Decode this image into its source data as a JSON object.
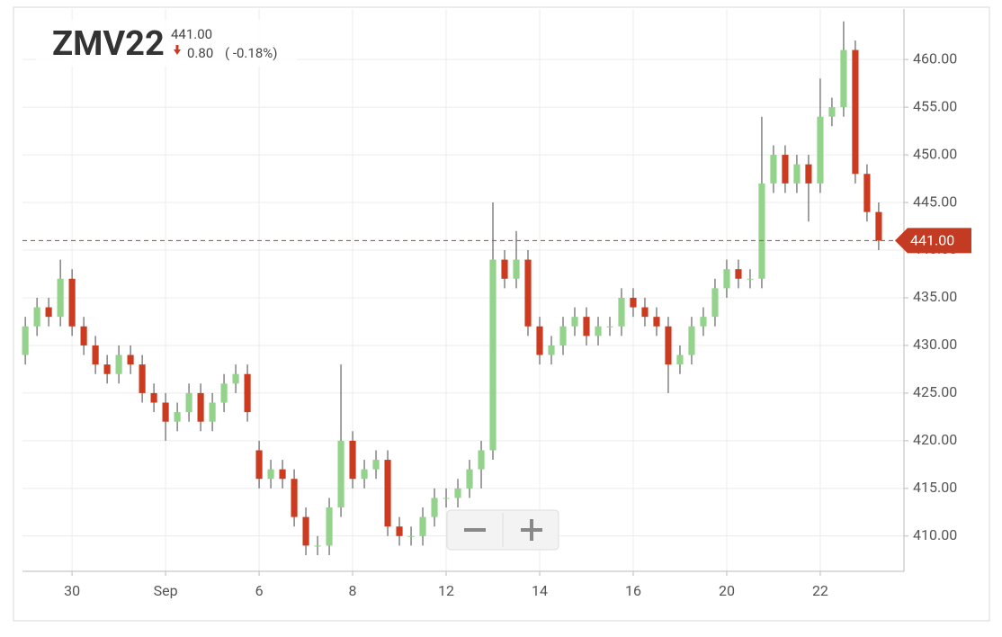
{
  "chart_data": {
    "type": "candlestick",
    "title": "ZMV22",
    "last": {
      "value": 441,
      "label": "441.00"
    },
    "change": "0.80",
    "change_pct": "( -0.18%)",
    "up_color": "#93d38c",
    "down_color": "#cc3b1f",
    "grid": true,
    "xlim": [
      -1.06,
      17.79
    ],
    "ylim": [
      406.3,
      465.3
    ],
    "xticks": [
      {
        "value": 0,
        "label": "30"
      },
      {
        "value": 2,
        "label": "Sep"
      },
      {
        "value": 4,
        "label": "6"
      },
      {
        "value": 6,
        "label": "8"
      },
      {
        "value": 8,
        "label": "12"
      },
      {
        "value": 10,
        "label": "14"
      },
      {
        "value": 12,
        "label": "16"
      },
      {
        "value": 14,
        "label": "20"
      },
      {
        "value": 16,
        "label": "22"
      }
    ],
    "yticks": [
      {
        "value": 410,
        "label": "410.00"
      },
      {
        "value": 415,
        "label": "415.00"
      },
      {
        "value": 420,
        "label": "420.00"
      },
      {
        "value": 425,
        "label": "425.00"
      },
      {
        "value": 430,
        "label": "430.00"
      },
      {
        "value": 435,
        "label": "435.00"
      },
      {
        "value": 440,
        "label": "440.00"
      },
      {
        "value": 445,
        "label": "445.00"
      },
      {
        "value": 450,
        "label": "450.00"
      },
      {
        "value": 455,
        "label": "455.00"
      },
      {
        "value": 460,
        "label": "460.00"
      }
    ],
    "x": [
      -1,
      -0.75,
      -0.5,
      -0.25,
      0,
      0.25,
      0.5,
      0.75,
      1,
      1.25,
      1.5,
      1.75,
      2,
      2.25,
      2.5,
      2.75,
      3,
      3.25,
      3.5,
      3.75,
      4,
      4.25,
      4.5,
      4.75,
      5,
      5.25,
      5.5,
      5.75,
      6,
      6.25,
      6.5,
      6.75,
      7,
      7.25,
      7.5,
      7.75,
      8,
      8.25,
      8.5,
      8.75,
      9,
      9.25,
      9.5,
      9.75,
      10,
      10.25,
      10.5,
      10.75,
      11,
      11.25,
      11.5,
      11.75,
      12,
      12.25,
      12.5,
      12.75,
      13,
      13.25,
      13.5,
      13.75,
      14,
      14.25,
      14.5,
      14.75,
      15,
      15.25,
      15.5,
      15.75,
      16,
      16.25,
      16.5,
      16.75,
      17,
      17.25
    ],
    "open": [
      429,
      432,
      434,
      433,
      437,
      432,
      430,
      428,
      427,
      429,
      428,
      425,
      424,
      422,
      423,
      425,
      422,
      424,
      426,
      427,
      419,
      416,
      417,
      416,
      412,
      409,
      409,
      413,
      420,
      416,
      417,
      418,
      411,
      410,
      410,
      412,
      414,
      414,
      415,
      417,
      419,
      439,
      437,
      439,
      432,
      429,
      430,
      432,
      433,
      431,
      432,
      432,
      435,
      434,
      433,
      432,
      428,
      429,
      432,
      433,
      436,
      438,
      437,
      437,
      447,
      450,
      447,
      449,
      447,
      454,
      455,
      461,
      448,
      444
    ],
    "high": [
      433,
      435,
      435,
      439,
      438,
      433,
      431,
      429,
      430,
      430,
      429,
      426,
      425,
      424,
      426,
      426,
      425,
      427,
      428,
      428,
      420,
      418,
      418,
      417,
      413,
      410,
      414,
      428,
      421,
      418,
      419,
      419,
      412,
      411,
      413,
      415,
      415,
      416,
      418,
      420,
      445,
      440,
      442,
      440,
      433,
      431,
      433,
      434,
      434,
      433,
      433,
      436,
      436,
      435,
      434,
      433,
      430,
      433,
      434,
      437,
      439,
      439,
      438,
      454,
      451,
      451,
      450,
      450,
      458,
      456,
      464,
      462,
      449,
      445
    ],
    "low": [
      428,
      431,
      432,
      432,
      431,
      429,
      427,
      426,
      426,
      427,
      424,
      423,
      420,
      421,
      422,
      421,
      421,
      423,
      425,
      422,
      415,
      415,
      415,
      411,
      408,
      408,
      408,
      412,
      415,
      415,
      416,
      410,
      409,
      409,
      409,
      411,
      413,
      413,
      414,
      415,
      418,
      436,
      436,
      431,
      428,
      428,
      429,
      431,
      430,
      430,
      431,
      431,
      433,
      432,
      431,
      425,
      427,
      428,
      431,
      432,
      435,
      436,
      436,
      436,
      446,
      446,
      446,
      443,
      446,
      453,
      454,
      447,
      443,
      440
    ],
    "close": [
      432,
      434,
      433,
      437,
      432,
      430,
      428,
      427,
      429,
      428,
      425,
      424,
      422,
      423,
      425,
      422,
      424,
      426,
      427,
      423,
      416,
      417,
      416,
      412,
      409,
      409,
      413,
      420,
      416,
      417,
      418,
      411,
      410,
      410,
      412,
      414,
      414,
      415,
      417,
      419,
      439,
      437,
      439,
      432,
      429,
      430,
      432,
      433,
      431,
      432,
      432,
      435,
      434,
      433,
      432,
      428,
      429,
      432,
      433,
      436,
      438,
      437,
      437,
      447,
      450,
      447,
      449,
      447,
      454,
      455,
      461,
      448,
      444,
      441
    ]
  }
}
